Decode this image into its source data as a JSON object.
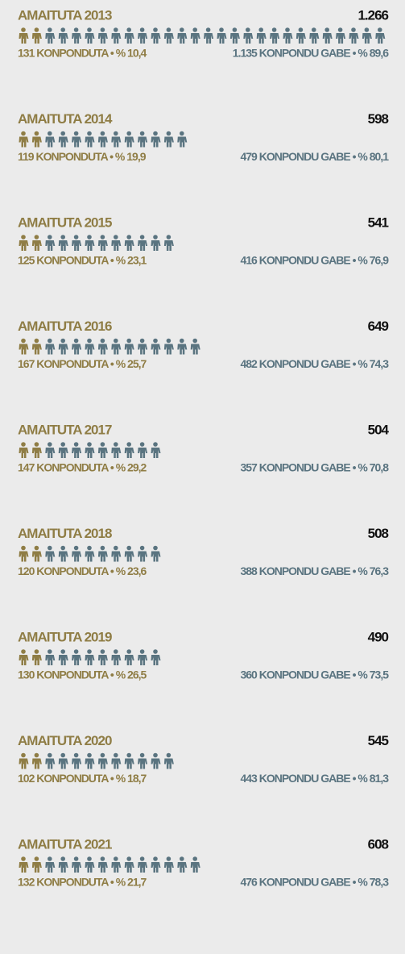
{
  "items": [
    {
      "title": "AMAITUTA 2013",
      "total": {
        "value": 1266,
        "label": "1.266"
      },
      "left": "131 KONPONDUTA • % 10,4",
      "right": "1.135 KONPONDU GABE • % 89,6"
    },
    {
      "title": "AMAITUTA 2014",
      "total": 598,
      "left": "119 KONPONDUTA • % 19,9",
      "right": "479 KONPONDU GABE • % 80,1"
    },
    {
      "title": "AMAITUTA 2015",
      "total": 541,
      "left": "125 KONPONDUTA • % 23,1",
      "right": "416 KONPONDU GABE • % 76,9"
    },
    {
      "title": "AMAITUTA 2016",
      "total": 649,
      "left": "167 KONPONDUTA • % 25,7",
      "right": "482 KONPONDU GABE • % 74,3"
    },
    {
      "title": "AMAITUTA 2017",
      "total": 504,
      "left": "147 KONPONDUTA • % 29,2",
      "right": "357 KONPONDU GABE • % 70,8"
    },
    {
      "title": "AMAITUTA 2018",
      "total": 508,
      "left": "120 KONPONDUTA • % 23,6",
      "right": "388 KONPONDU GABE • % 76,3"
    },
    {
      "title": "AMAITUTA 2019",
      "total": 490,
      "left": "130 KONPONDUTA • % 26,5",
      "right": "360 KONPONDU GABE • % 73,5"
    },
    {
      "title": "AMAITUTA 2020",
      "total": 545,
      "left": "102 KONPONDUTA • % 18,7",
      "right": "443 KONPONDU GABE • % 81,3"
    },
    {
      "title": "AMAITUTA 2021",
      "total": 608,
      "left": "132 KONPONDUTA • % 21,7",
      "right": "476 KONPONDU GABE • % 78,3"
    }
  ]
}
